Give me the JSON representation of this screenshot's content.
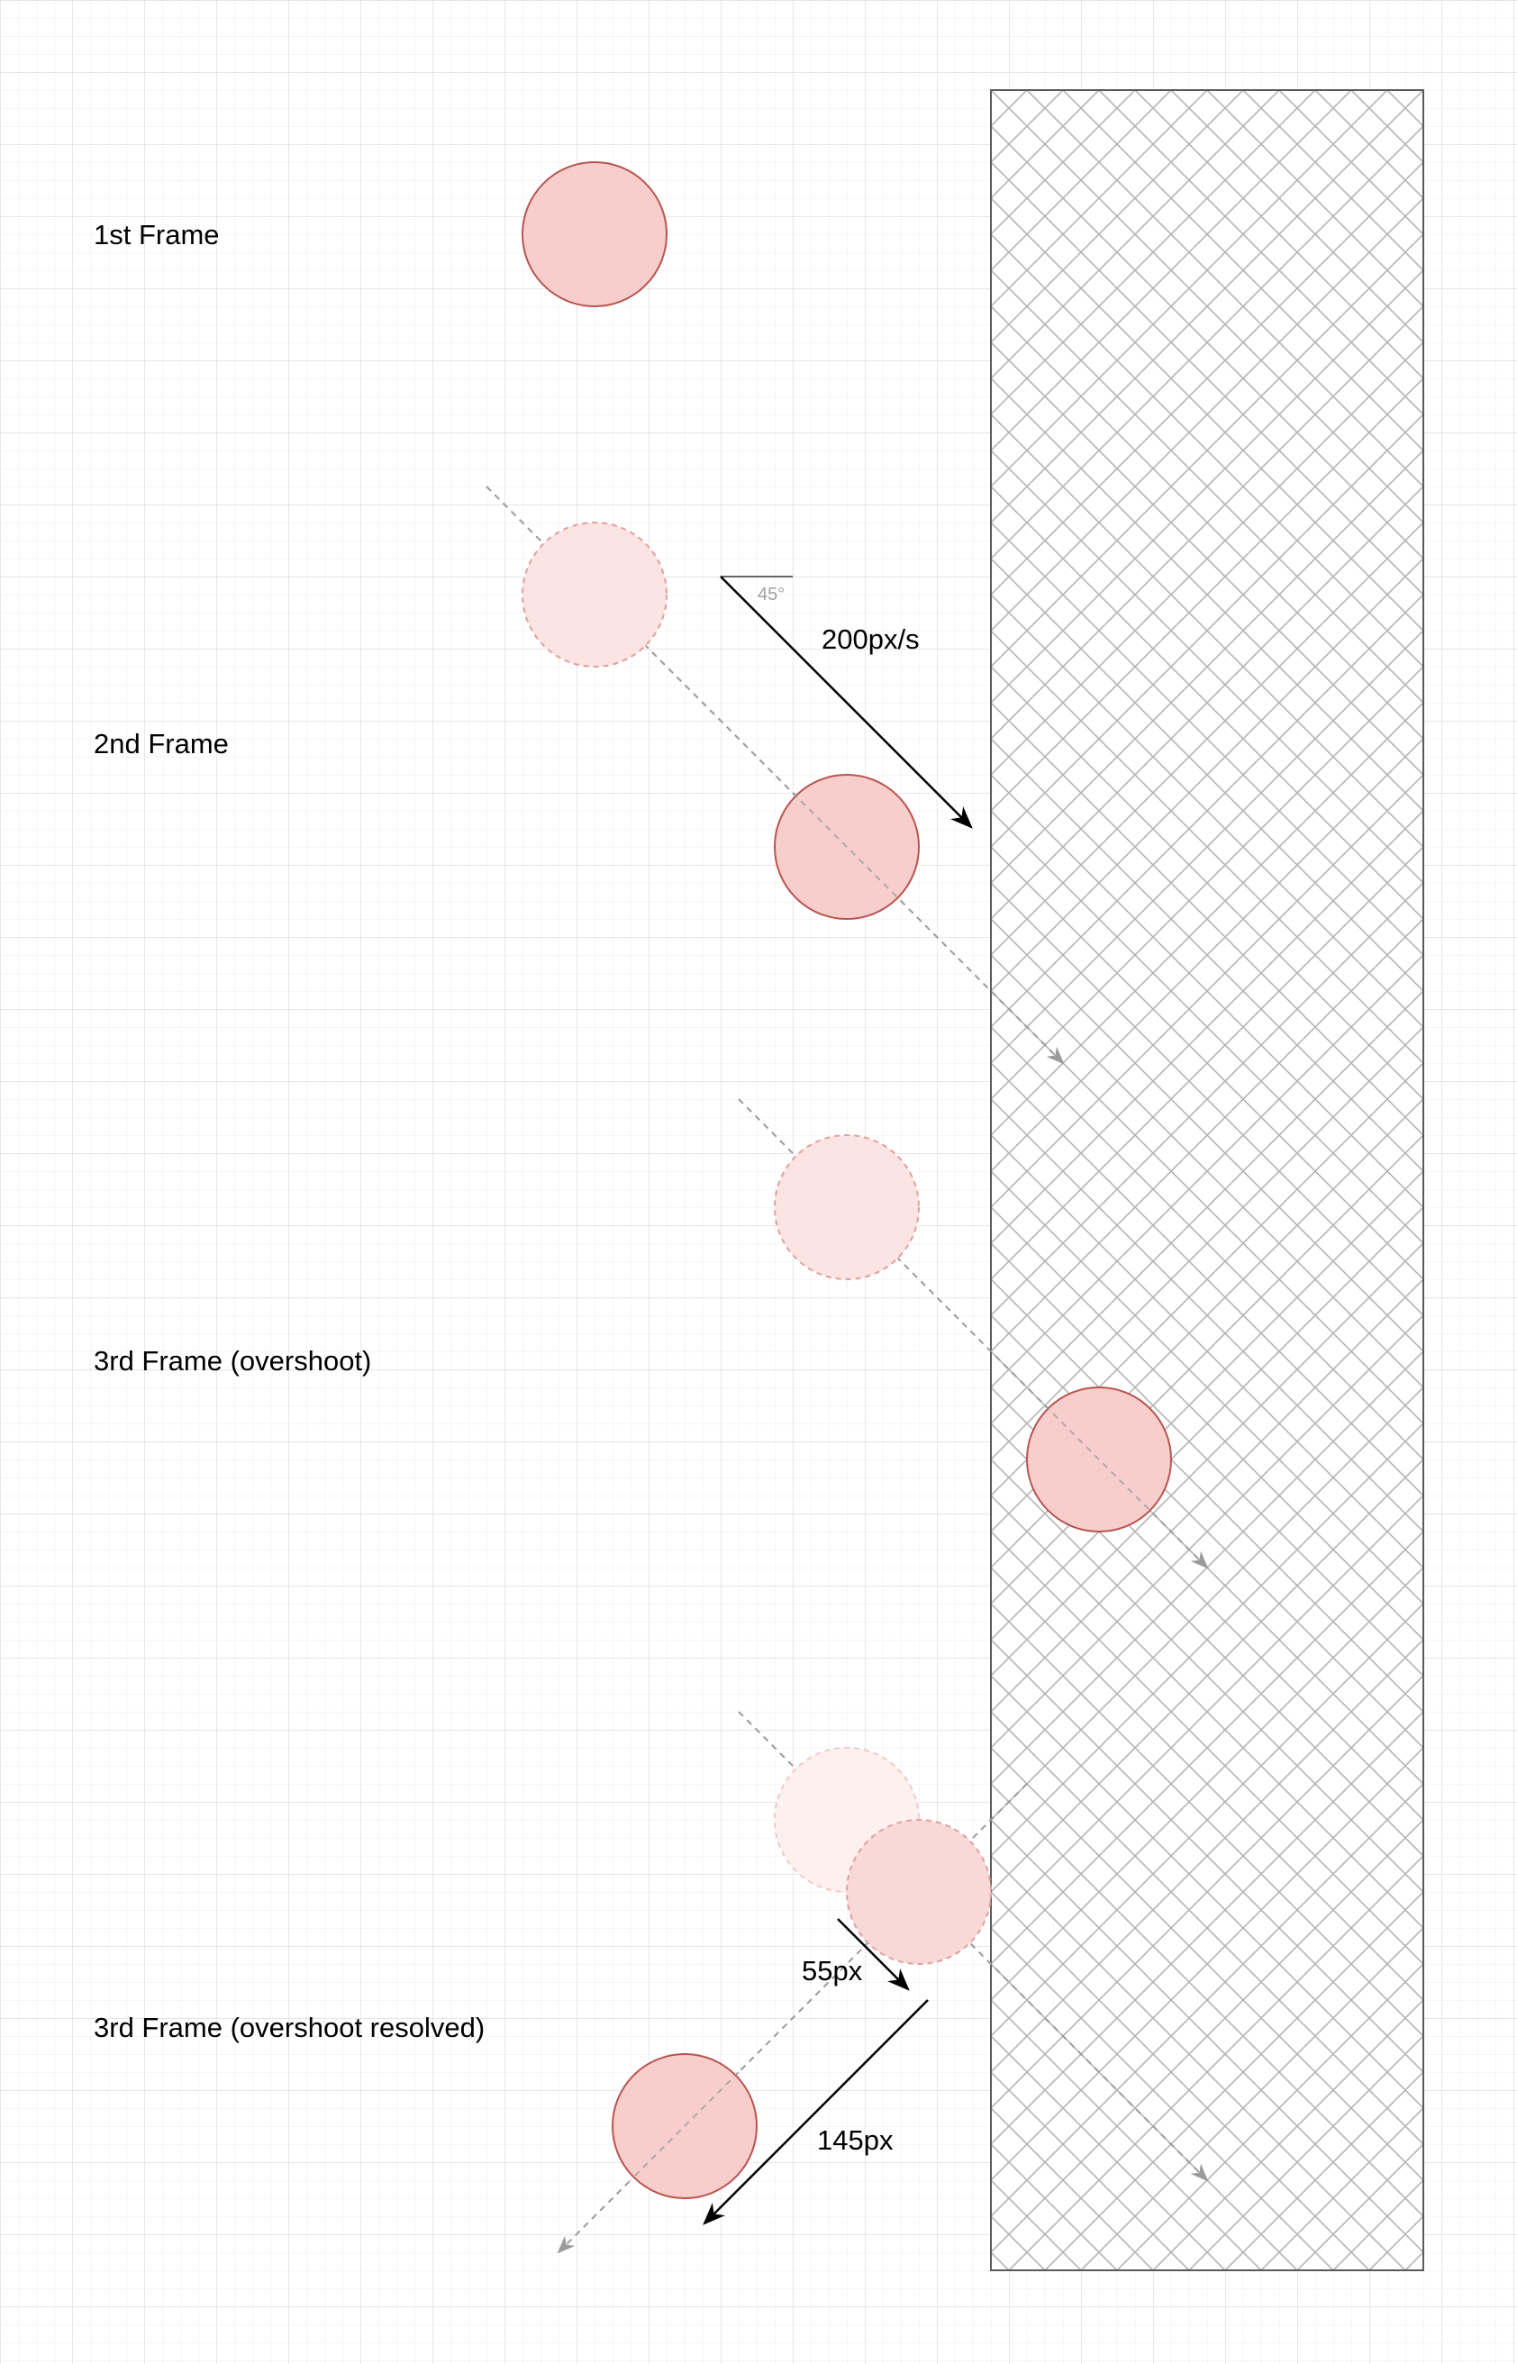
{
  "frames": {
    "first": "1st Frame",
    "second": "2nd Frame",
    "third": "3rd Frame (overshoot)",
    "third_resolved": "3rd Frame (overshoot resolved)"
  },
  "annotations": {
    "angle": "45°",
    "speed": "200px/s",
    "overshoot": "55px",
    "remaining": "145px"
  },
  "colors": {
    "background": "#ffffff",
    "grid_minor": "#ececec",
    "grid_major": "#d8d8d8",
    "ball_fill": "#f8cecc",
    "ball_stroke": "#b85450",
    "ghost_fill": "#fbe4e3",
    "ghost_stroke": "#e0a09d",
    "trajectory": "#9a9a9a",
    "wall_stroke": "#5a5a5a",
    "wall_hatch": "#b4b4b4",
    "arrow": "#000000"
  }
}
